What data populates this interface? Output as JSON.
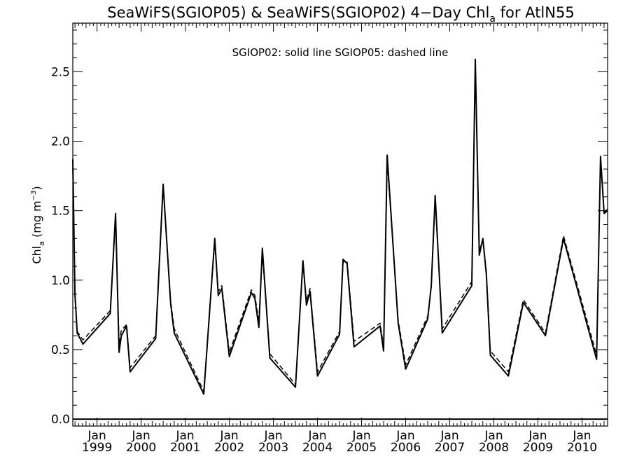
{
  "chart_data": {
    "type": "line",
    "title_main": "SeaWiFS(SGIOP05) & SeaWiFS(SGIOP02) 4−Day Chl",
    "title_sub": "a",
    "title_end": " for AtlN55",
    "ylabel_main": "Chl",
    "ylabel_sub": "a",
    "ylabel_unit": " (mg m",
    "ylabel_exp": "−3",
    "ylabel_close": ")",
    "legend_text": "SGIOP02: solid line   SGIOP05: dashed line",
    "xlim": [
      1998.45,
      2010.58
    ],
    "ylim": [
      -0.05,
      2.85
    ],
    "yticks": [
      0.0,
      0.5,
      1.0,
      1.5,
      2.0,
      2.5
    ],
    "ytick_labels": [
      "0.0",
      "0.5",
      "1.0",
      "1.5",
      "2.0",
      "2.5"
    ],
    "xticks": [
      1999,
      2000,
      2001,
      2002,
      2003,
      2004,
      2005,
      2006,
      2007,
      2008,
      2009,
      2010
    ],
    "xtick_month_label": "Jan",
    "xtick_year_labels": [
      "1999",
      "2000",
      "2001",
      "2002",
      "2003",
      "2004",
      "2005",
      "2006",
      "2007",
      "2008",
      "2009",
      "2010"
    ],
    "zero_line": 0.0,
    "series": [
      {
        "style": "solid",
        "points": [
          [
            1998.45,
            1.87
          ],
          [
            1998.5,
            0.9
          ],
          [
            1998.55,
            0.62
          ],
          [
            1998.68,
            0.54
          ],
          [
            1999.3,
            0.76
          ],
          [
            1999.42,
            1.48
          ],
          [
            1999.5,
            0.48
          ],
          [
            1999.55,
            0.6
          ],
          [
            1999.67,
            0.67
          ],
          [
            1999.75,
            0.34
          ],
          [
            2000.33,
            0.58
          ],
          [
            2000.5,
            1.69
          ],
          [
            2000.67,
            0.83
          ],
          [
            2000.75,
            0.62
          ],
          [
            2001.42,
            0.18
          ],
          [
            2001.67,
            1.3
          ],
          [
            2001.75,
            0.89
          ],
          [
            2001.83,
            0.94
          ],
          [
            2002.0,
            0.45
          ],
          [
            2002.5,
            0.91
          ],
          [
            2002.58,
            0.87
          ],
          [
            2002.67,
            0.66
          ],
          [
            2002.75,
            1.23
          ],
          [
            2002.92,
            0.44
          ],
          [
            2003.5,
            0.23
          ],
          [
            2003.67,
            1.14
          ],
          [
            2003.75,
            0.82
          ],
          [
            2003.83,
            0.92
          ],
          [
            2004.0,
            0.31
          ],
          [
            2004.5,
            0.61
          ],
          [
            2004.58,
            1.15
          ],
          [
            2004.67,
            1.12
          ],
          [
            2004.83,
            0.52
          ],
          [
            2005.42,
            0.67
          ],
          [
            2005.5,
            0.49
          ],
          [
            2005.58,
            1.9
          ],
          [
            2005.83,
            0.69
          ],
          [
            2006.0,
            0.36
          ],
          [
            2006.5,
            0.72
          ],
          [
            2006.58,
            0.96
          ],
          [
            2006.67,
            1.61
          ],
          [
            2006.83,
            0.62
          ],
          [
            2007.5,
            0.96
          ],
          [
            2007.58,
            2.59
          ],
          [
            2007.67,
            1.18
          ],
          [
            2007.75,
            1.3
          ],
          [
            2007.83,
            1.04
          ],
          [
            2007.92,
            0.46
          ],
          [
            2008.33,
            0.31
          ],
          [
            2008.67,
            0.84
          ],
          [
            2009.17,
            0.6
          ],
          [
            2009.58,
            1.3
          ],
          [
            2010.33,
            0.43
          ],
          [
            2010.42,
            1.89
          ],
          [
            2010.5,
            1.48
          ],
          [
            2010.58,
            1.5
          ]
        ]
      },
      {
        "style": "dashed",
        "points": [
          [
            1998.45,
            1.8
          ],
          [
            1998.5,
            0.88
          ],
          [
            1998.55,
            0.63
          ],
          [
            1998.68,
            0.57
          ],
          [
            1999.3,
            0.78
          ],
          [
            1999.42,
            1.46
          ],
          [
            1999.5,
            0.53
          ],
          [
            1999.55,
            0.64
          ],
          [
            1999.67,
            0.68
          ],
          [
            1999.75,
            0.37
          ],
          [
            2000.33,
            0.6
          ],
          [
            2000.5,
            1.67
          ],
          [
            2000.67,
            0.85
          ],
          [
            2000.75,
            0.65
          ],
          [
            2001.42,
            0.2
          ],
          [
            2001.67,
            1.28
          ],
          [
            2001.75,
            0.92
          ],
          [
            2001.83,
            0.96
          ],
          [
            2002.0,
            0.48
          ],
          [
            2002.5,
            0.93
          ],
          [
            2002.58,
            0.89
          ],
          [
            2002.67,
            0.7
          ],
          [
            2002.75,
            1.2
          ],
          [
            2002.92,
            0.47
          ],
          [
            2003.5,
            0.25
          ],
          [
            2003.67,
            1.12
          ],
          [
            2003.75,
            0.85
          ],
          [
            2003.83,
            0.94
          ],
          [
            2004.0,
            0.34
          ],
          [
            2004.5,
            0.63
          ],
          [
            2004.58,
            1.13
          ],
          [
            2004.67,
            1.14
          ],
          [
            2004.83,
            0.56
          ],
          [
            2005.42,
            0.69
          ],
          [
            2005.5,
            0.52
          ],
          [
            2005.58,
            1.86
          ],
          [
            2005.83,
            0.71
          ],
          [
            2006.0,
            0.39
          ],
          [
            2006.5,
            0.74
          ],
          [
            2006.58,
            0.95
          ],
          [
            2006.67,
            1.58
          ],
          [
            2006.83,
            0.65
          ],
          [
            2007.5,
            0.99
          ],
          [
            2007.58,
            2.55
          ],
          [
            2007.67,
            1.21
          ],
          [
            2007.75,
            1.29
          ],
          [
            2007.83,
            1.06
          ],
          [
            2007.92,
            0.49
          ],
          [
            2008.33,
            0.34
          ],
          [
            2008.67,
            0.86
          ],
          [
            2009.17,
            0.62
          ],
          [
            2009.58,
            1.32
          ],
          [
            2010.33,
            0.46
          ],
          [
            2010.42,
            1.86
          ],
          [
            2010.5,
            1.49
          ],
          [
            2010.58,
            1.51
          ]
        ]
      }
    ]
  }
}
